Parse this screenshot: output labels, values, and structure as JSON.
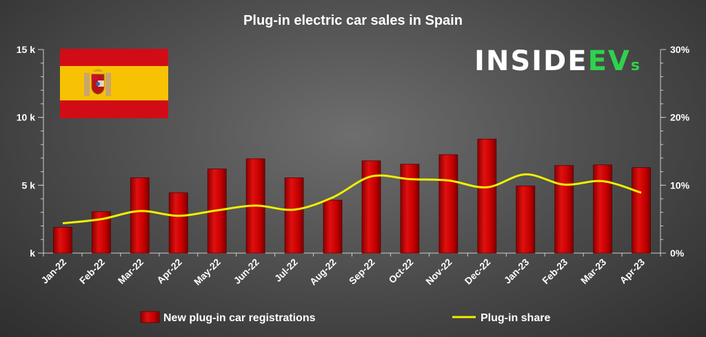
{
  "chart_data": {
    "type": "bar",
    "title": "Plug-in electric car sales in Spain",
    "categories": [
      "Jan-22",
      "Feb-22",
      "Mar-22",
      "Apr-22",
      "May-22",
      "Jun-22",
      "Jul-22",
      "Aug-22",
      "Sep-22",
      "Oct-22",
      "Nov-22",
      "Dec-22",
      "Jan-23",
      "Feb-23",
      "Mar-23",
      "Apr-23"
    ],
    "series": [
      {
        "name": "New plug-in car registrations",
        "type": "bar",
        "axis": "left",
        "color": "#dd0000",
        "values": [
          1900,
          3050,
          5550,
          4450,
          6200,
          6950,
          5550,
          3900,
          6800,
          6550,
          7250,
          8400,
          4950,
          6450,
          6500,
          6300
        ]
      },
      {
        "name": "Plug-in share",
        "type": "line",
        "axis": "right",
        "color": "#f0f000",
        "values": [
          4.4,
          5.0,
          6.2,
          5.5,
          6.3,
          7.0,
          6.4,
          8.2,
          11.3,
          10.9,
          10.7,
          9.7,
          11.6,
          10.1,
          10.6,
          8.9
        ]
      }
    ],
    "y_left": {
      "ylim": [
        0,
        15000
      ],
      "ticks": [
        0,
        5000,
        10000,
        15000
      ],
      "tick_labels": [
        "k",
        "5 k",
        "10 k",
        "15 k"
      ]
    },
    "y_right": {
      "ylim": [
        0,
        30
      ],
      "ticks": [
        0,
        10,
        20,
        30
      ],
      "tick_labels": [
        "0%",
        "10%",
        "20%",
        "30%"
      ]
    },
    "xlabel": "",
    "ylabel": "",
    "legend": "bottom"
  },
  "branding": {
    "logo_main": "INSIDE",
    "logo_accent": "EV",
    "logo_suffix": "s",
    "flag": "spain-flag"
  },
  "colors": {
    "logo_white": "#ffffff",
    "logo_green": "#2fd24e",
    "axis": "#cfcfcf",
    "flag_red": "#d10c17",
    "flag_yellow": "#f7c204"
  }
}
